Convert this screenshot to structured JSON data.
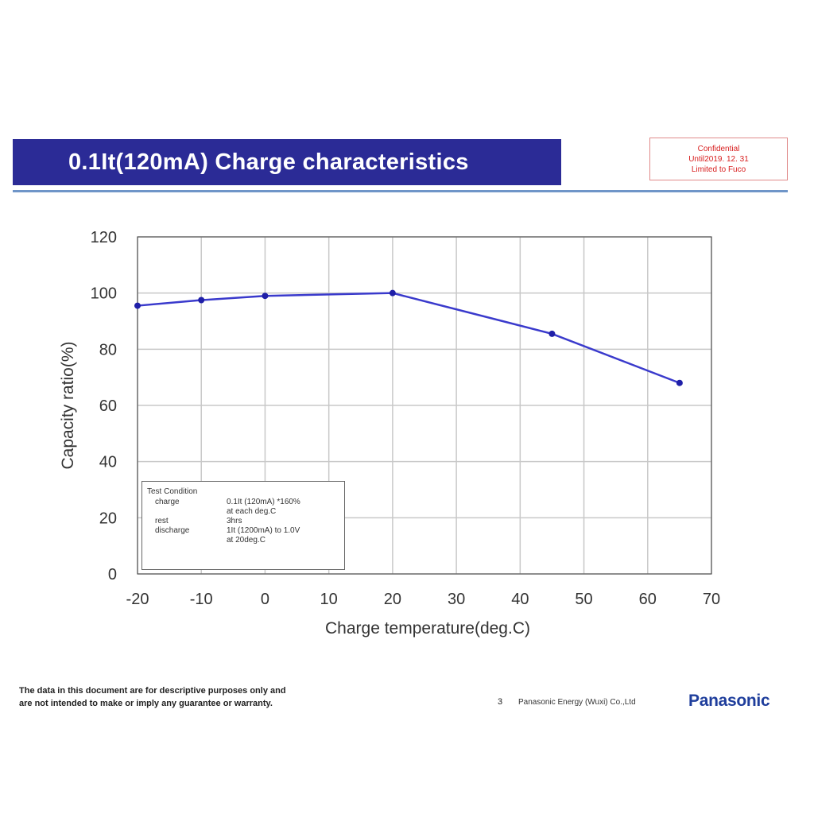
{
  "header": {
    "title": "0.1It(120mA) Charge characteristics",
    "confidential": [
      "Confidential",
      "Until2019. 12. 31",
      "Limited to Fuco"
    ]
  },
  "chart_data": {
    "type": "line",
    "xlabel": "Charge temperature(deg.C)",
    "ylabel": "Capacity ratio(%)",
    "xlim": [
      -20,
      70
    ],
    "ylim": [
      0,
      120
    ],
    "x_ticks": [
      -20,
      -10,
      0,
      10,
      20,
      30,
      40,
      50,
      60,
      70
    ],
    "y_ticks": [
      0,
      20,
      40,
      60,
      80,
      100,
      120
    ],
    "grid": true,
    "series": [
      {
        "x": [
          -20,
          -10,
          0,
          20,
          45,
          65
        ],
        "y": [
          95.5,
          97.5,
          99,
          100,
          85.5,
          68
        ]
      }
    ],
    "colors": {
      "line": "#3a3acc",
      "marker": "#1f1fa8",
      "grid": "#c8c8c8",
      "frame": "#555555"
    }
  },
  "test_condition": {
    "title": "Test Condition",
    "rows": [
      {
        "key": "charge",
        "values": [
          "0.1It (120mA) *160%",
          "at each deg.C"
        ]
      },
      {
        "key": "rest",
        "values": [
          "3hrs"
        ]
      },
      {
        "key": "discharge",
        "values": [
          "1It (1200mA) to 1.0V",
          "at 20deg.C"
        ]
      }
    ]
  },
  "footer": {
    "disclaimer": [
      "The data in this document are for descriptive purposes only and",
      "are not intended to make or imply any guarantee or warranty."
    ],
    "page_number": "3",
    "company": "Panasonic Energy (Wuxi) Co.,Ltd",
    "brand": "Panasonic"
  }
}
